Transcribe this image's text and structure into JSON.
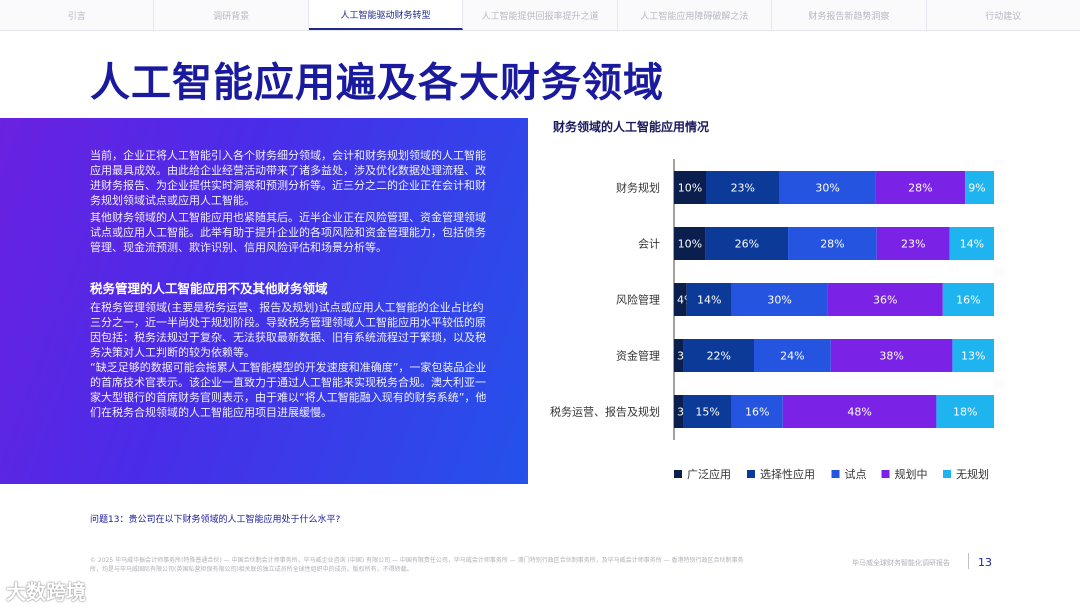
{
  "nav": {
    "tabs": [
      "引言",
      "调研背景",
      "人工智能驱动财务转型",
      "人工智能提供回报率提升之道",
      "人工智能应用障碍破解之法",
      "财务报告新趋势洞察",
      "行动建议"
    ],
    "active_index": 2
  },
  "title": "人工智能应用遍及各大财务领域",
  "panel": {
    "p1": "当前，企业正将人工智能引入各个财务细分领域，会计和财务规划领域的人工智能应用最具成效。由此给企业经营活动带来了诸多益处，涉及优化数据处理流程、改进财务报告、为企业提供实时洞察和预测分析等。近三分之二的企业正在会计和财务规划领域试点或应用人工智能。",
    "p2": "其他财务领域的人工智能应用也紧随其后。近半企业正在风险管理、资金管理领域试点或应用人工智能。此举有助于提升企业的各项风险和资金管理能力，包括债务管理、现金流预测、欺诈识别、信用风险评估和场景分析等。",
    "subtitle": "税务管理的人工智能应用不及其他财务领域",
    "p3": "在税务管理领域(主要是税务运营、报告及规划)试点或应用人工智能的企业占比约三分之一，近一半尚处于规划阶段。导致税务管理领域人工智能应用水平较低的原因包括：税务法规过于复杂、无法获取最新数据、旧有系统流程过于繁琐，以及税务决策对人工判断的较为依赖等。",
    "p4": "“缺乏足够的数据可能会拖累人工智能模型的开发速度和准确度”，一家包装品企业的首席技术官表示。该企业一直致力于通过人工智能来实现税务合规。澳大利亚一家大型银行的首席财务官则表示，由于难以“将人工智能融入现有的财务系统”，他们在税务合规领域的人工智能应用项目进展缓慢。"
  },
  "chart_title": "财务领域的人工智能应用情况",
  "chart_data": {
    "type": "bar",
    "orientation": "horizontal",
    "stacked": true,
    "categories": [
      "财务规划",
      "会计",
      "风险管理",
      "资金管理",
      "税务运营、报告及规划"
    ],
    "series": [
      {
        "name": "广泛应用",
        "values": [
          10,
          10,
          4,
          3,
          3
        ],
        "color": "#0a1f4e"
      },
      {
        "name": "选择性应用",
        "values": [
          23,
          26,
          14,
          22,
          15
        ],
        "color": "#0c3a99"
      },
      {
        "name": "试点",
        "values": [
          30,
          28,
          30,
          24,
          16
        ],
        "color": "#2454e0"
      },
      {
        "name": "规划中",
        "values": [
          28,
          23,
          36,
          38,
          48
        ],
        "color": "#7a22e6"
      },
      {
        "name": "无规划",
        "values": [
          9,
          14,
          16,
          13,
          18
        ],
        "color": "#1db4f0"
      }
    ],
    "value_suffix": "%",
    "legend_position": "bottom",
    "grid": false
  },
  "question": "问题13：贵公司在以下财务领域的人工智能应用处于什么水平?",
  "footer": {
    "legal": "© 2025 毕马威华振会计师事务所(特殊普通合伙) — 中国合伙制会计师事务所，毕马威企业咨询 (中国) 有限公司 — 中国有限责任公司，毕马威会计师事务所 — 澳门特别行政区合伙制事务所，及毕马威会计师事务所 — 香港特别行政区合伙制事务所，均是与毕马威国际有限公司(英国私营担保有限公司)相关联的独立成员所全球性组织中的成员。版权所有，不得转载。",
    "report": "毕马威全球财务智能化调研报告",
    "page": "13"
  },
  "watermark": "大数跨境"
}
